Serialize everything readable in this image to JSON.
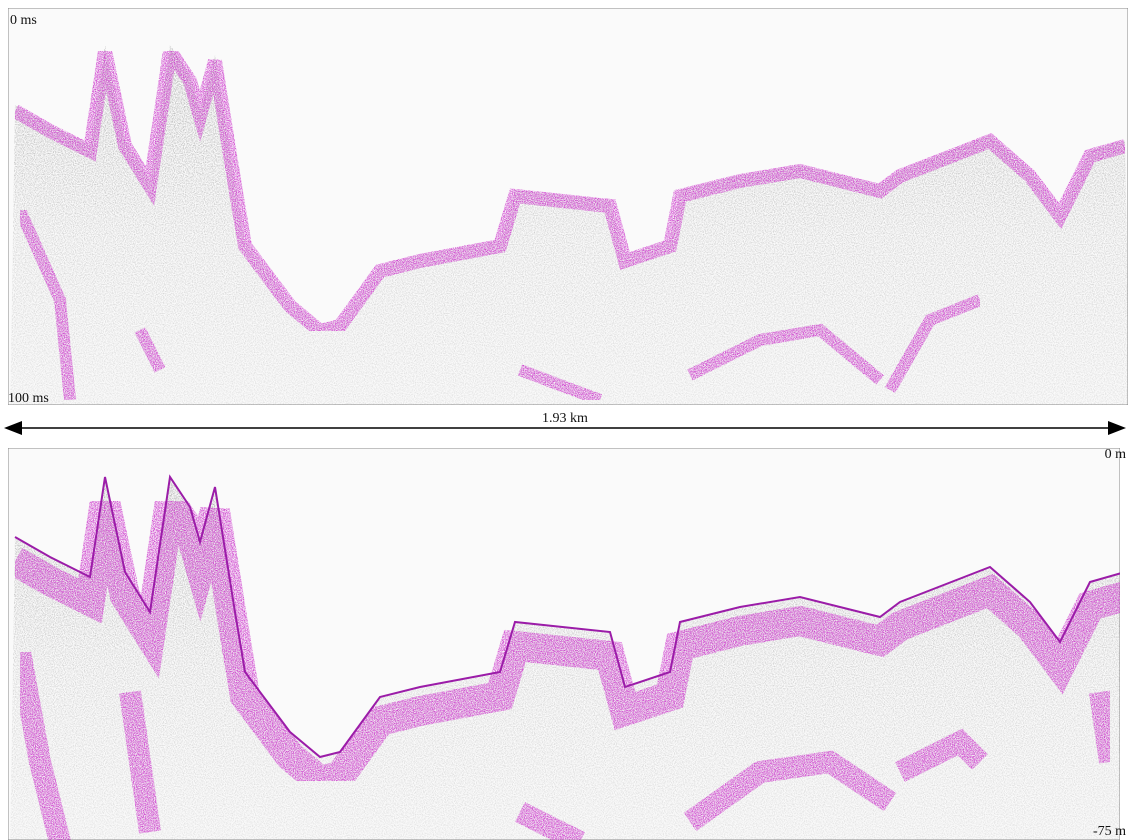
{
  "top_panel": {
    "top_label": "0 ms",
    "bottom_label": "100 ms"
  },
  "scale": {
    "label": "1.93 km"
  },
  "bottom_panel": {
    "top_label": "0 m",
    "bottom_label": "-75 m"
  }
}
